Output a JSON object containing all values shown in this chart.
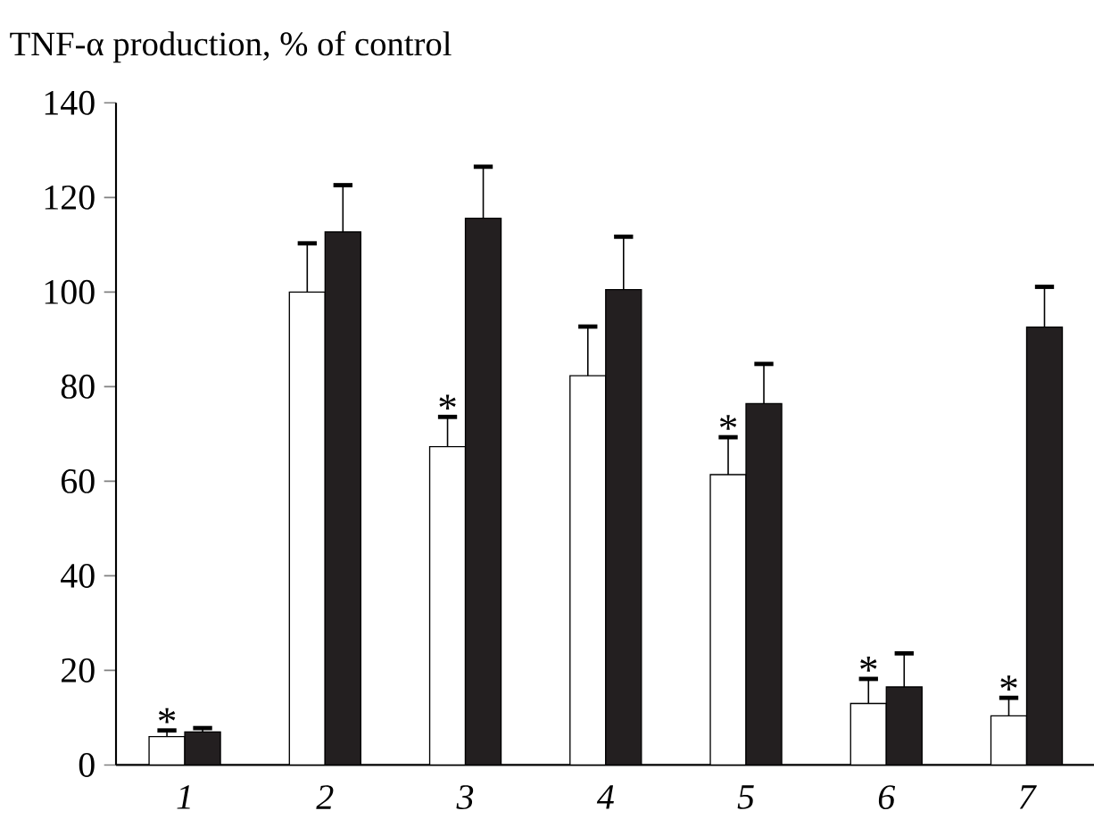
{
  "chart_data": {
    "type": "bar",
    "ylabel": "TNF-α production, % of control",
    "categories": [
      "1",
      "2",
      "3",
      "4",
      "5",
      "6",
      "7"
    ],
    "series": [
      {
        "color": "#ffffff",
        "values": [
          6.0,
          100,
          67.3,
          82.3,
          61.4,
          13.0,
          10.4
        ],
        "errors": [
          [
            6.0,
            7.3
          ],
          [
            100,
            110.3
          ],
          [
            67.3,
            73.6
          ],
          [
            82.3,
            92.7
          ],
          [
            61.4,
            69.3
          ],
          [
            13.0,
            18.2
          ],
          [
            10.4,
            14.2
          ]
        ]
      },
      {
        "color": "#231f20",
        "values": [
          7.0,
          112.7,
          115.6,
          100.5,
          76.4,
          16.5,
          92.6
        ],
        "errors": [
          [
            7.0,
            7.8
          ],
          [
            112.7,
            122.6
          ],
          [
            115.6,
            126.5
          ],
          [
            100.5,
            111.7
          ],
          [
            76.4,
            84.8
          ],
          [
            16.5,
            23.6
          ],
          [
            92.6,
            101.1
          ]
        ]
      }
    ],
    "ylim": [
      0,
      140
    ],
    "yticks": [
      0,
      20,
      40,
      60,
      80,
      100,
      120,
      140
    ],
    "annotations": [
      {
        "text": "*",
        "x": "1",
        "y": 7.3
      },
      {
        "text": "*",
        "x": "3",
        "y": 73.6
      },
      {
        "text": "*",
        "x": "5",
        "y": 69.3
      },
      {
        "text": "*",
        "x": "6",
        "y": 18.2
      },
      {
        "text": "*",
        "x": "7",
        "y": 14.2
      }
    ],
    "grid": false
  }
}
